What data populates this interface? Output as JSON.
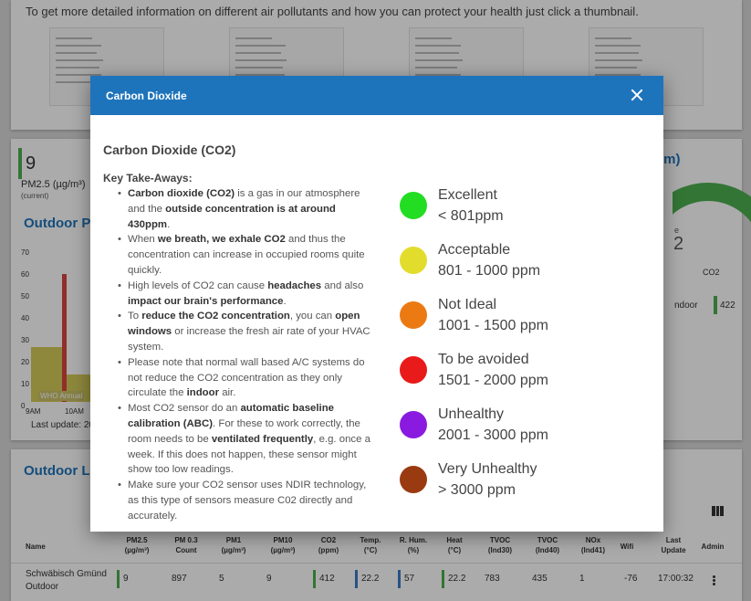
{
  "background": {
    "intro_text": "To get more detailed information on different air pollutants and how you can protect your health just click a thumbnail.",
    "pm_value": "9",
    "pm_label": "PM2.5 (µg/m³)",
    "pm_sub": "(current)",
    "outdoor_title": "Outdoor PM",
    "y_ticks": [
      "70",
      "60",
      "50",
      "40",
      "30",
      "20",
      "10",
      "0"
    ],
    "who_label": "WHO Annual",
    "x_ticks": [
      "9AM",
      "10AM"
    ],
    "last_update": "Last update: 20",
    "ppm_title": "pm)",
    "gauge_label": "CO2",
    "gauge_e_fragment": "e",
    "gauge_two_fragment": "2",
    "indoor_label": "ndoor",
    "indoor_value": "422",
    "lower_title": "Outdoor Lo",
    "table": {
      "headers": [
        "Name",
        "PM2.5 (µg/m³)",
        "PM 0.3 Count",
        "PM1 (µg/m³)",
        "PM10 (µg/m³)",
        "CO2 (ppm)",
        "Temp. (°C)",
        "R. Hum. (%)",
        "Heat (°C)",
        "TVOC (Ind30)",
        "TVOC (Ind40)",
        "NOx (Ind41)",
        "Wifi",
        "Last Update",
        "Admin"
      ],
      "row": [
        "Schwäbisch Gmünd Outdoor",
        "9",
        "897",
        "5",
        "9",
        "412",
        "22.2",
        "57",
        "22.2",
        "783",
        "435",
        "1",
        "-76",
        "17:00:32"
      ]
    }
  },
  "modal": {
    "title": "Carbon Dioxide",
    "heading": "Carbon Dioxide (CO2)",
    "key_takeaways_label": "Key Take-Aways:",
    "bullets": [
      [
        [
          "Carbon dioxide (CO2)",
          true
        ],
        [
          " is a gas in our atmosphere and the ",
          false
        ],
        [
          "outside concentration is at around 430ppm",
          true
        ],
        [
          ".",
          false
        ]
      ],
      [
        [
          "When ",
          false
        ],
        [
          "we breath, we exhale CO2",
          true
        ],
        [
          " and thus the concentration can increase in occupied rooms quite quickly.",
          false
        ]
      ],
      [
        [
          "High levels of CO2 can cause ",
          false
        ],
        [
          "headaches",
          true
        ],
        [
          " and also ",
          false
        ],
        [
          "impact our brain's performance",
          true
        ],
        [
          ".",
          false
        ]
      ],
      [
        [
          "To ",
          false
        ],
        [
          "reduce the CO2 concentration",
          true
        ],
        [
          ", you can ",
          false
        ],
        [
          "open windows",
          true
        ],
        [
          " or increase the fresh air rate of your HVAC system.",
          false
        ]
      ],
      [
        [
          "Please note that normal wall based A/C systems do not reduce the CO2 concentration as they only circulate the ",
          false
        ],
        [
          "indoor",
          true
        ],
        [
          " air.",
          false
        ]
      ],
      [
        [
          "Most CO2 sensor do an ",
          false
        ],
        [
          "automatic baseline calibration (ABC)",
          true
        ],
        [
          ". For these to work correctly, the room needs to be ",
          false
        ],
        [
          "ventilated frequently",
          true
        ],
        [
          ", e.g. once a week. If this does not happen, these sensor might show too low readings.",
          false
        ]
      ],
      [
        [
          "Make sure your CO2 sensor uses NDIR technology, as this type of sensors measure C02 directly and accurately.",
          false
        ]
      ]
    ],
    "legend": [
      {
        "name": "Excellent",
        "range": "< 801ppm",
        "color": "#22dd22"
      },
      {
        "name": "Acceptable",
        "range": "801 - 1000 ppm",
        "color": "#e2dc2c"
      },
      {
        "name": "Not Ideal",
        "range": "1001 - 1500 ppm",
        "color": "#ec7a12"
      },
      {
        "name": "To be avoided",
        "range": "1501 - 2000 ppm",
        "color": "#e81a1a"
      },
      {
        "name": "Unhealthy",
        "range": "2001 - 3000 ppm",
        "color": "#8a1ae0"
      },
      {
        "name": "Very Unhealthy",
        "range": "> 3000 ppm",
        "color": "#9a3a10"
      }
    ],
    "close_icon": "close-icon"
  }
}
